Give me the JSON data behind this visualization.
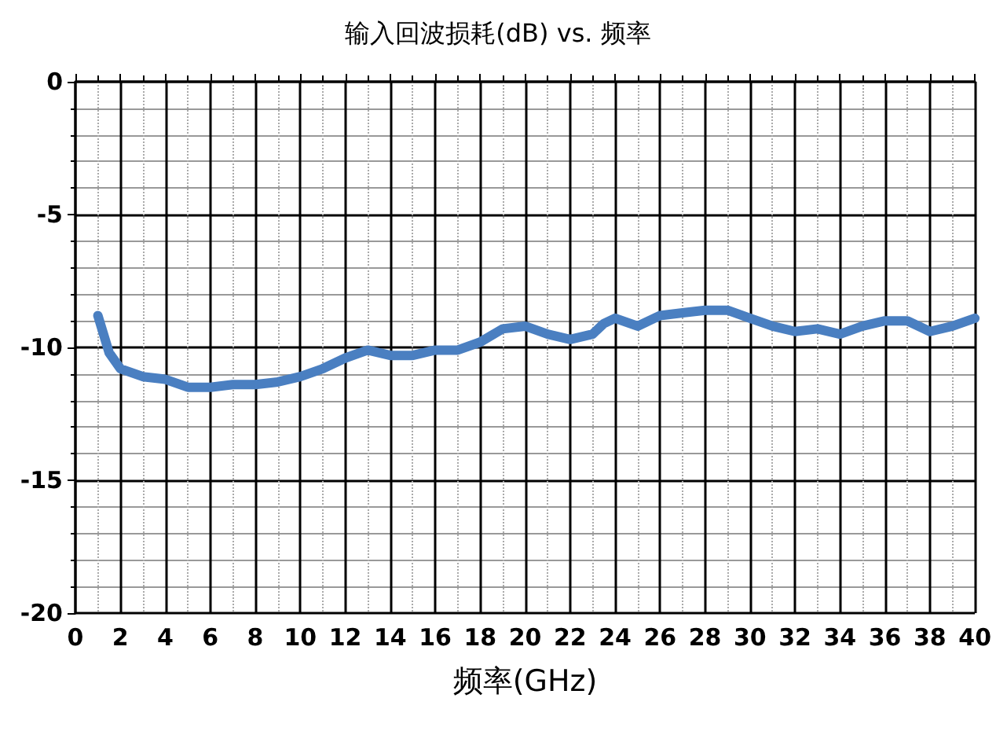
{
  "chart_data": {
    "type": "line",
    "title": "输入回波损耗(dB) vs. 频率",
    "xlabel": "频率(GHz)",
    "x": [
      1,
      1.5,
      2,
      3,
      4,
      5,
      6,
      7,
      8,
      9,
      10,
      11,
      12,
      13,
      14,
      15,
      16,
      17,
      18,
      19,
      20,
      21,
      22,
      23,
      23.5,
      24,
      25,
      26,
      27,
      28,
      29,
      30,
      31,
      32,
      33,
      34,
      35,
      36,
      37,
      38,
      39,
      40
    ],
    "series": [
      {
        "color": "#4a7fc1",
        "values": [
          -8.8,
          -10.2,
          -10.8,
          -11.1,
          -11.2,
          -11.5,
          -11.5,
          -11.4,
          -11.4,
          -11.3,
          -11.1,
          -10.8,
          -10.4,
          -10.1,
          -10.3,
          -10.3,
          -10.1,
          -10.1,
          -9.8,
          -9.3,
          -9.2,
          -9.5,
          -9.7,
          -9.5,
          -9.1,
          -8.9,
          -9.2,
          -8.8,
          -8.7,
          -8.6,
          -8.6,
          -8.9,
          -9.2,
          -9.4,
          -9.3,
          -9.5,
          -9.2,
          -9.0,
          -9.0,
          -9.4,
          -9.2,
          -8.9
        ]
      }
    ],
    "xlim": [
      0,
      40
    ],
    "xticks": [
      0,
      2,
      4,
      6,
      8,
      10,
      12,
      14,
      16,
      18,
      20,
      22,
      24,
      26,
      28,
      30,
      32,
      34,
      36,
      38,
      40
    ],
    "ylim": [
      -20,
      0
    ],
    "yticks": [
      -20,
      -15,
      -10,
      -5,
      0
    ],
    "grid": true,
    "marker": "none",
    "line_style": "solid"
  }
}
